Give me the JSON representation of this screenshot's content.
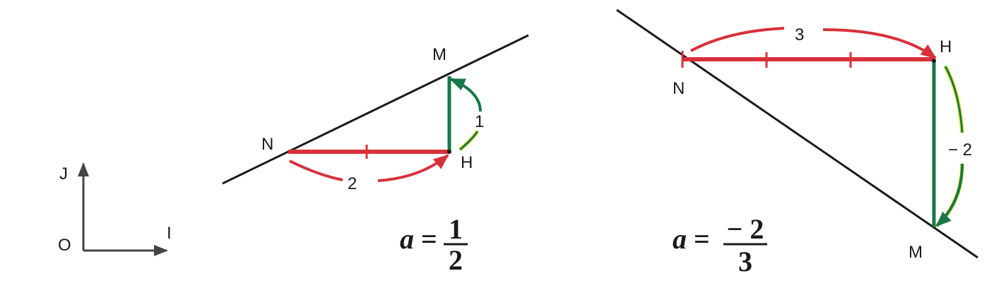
{
  "colors": {
    "line": "#1a1a1a",
    "run": "#d8303a",
    "rise": "#17774a",
    "highlight": "#f2e84a"
  },
  "axes": {
    "origin": "O",
    "x_unit": "I",
    "y_unit": "J"
  },
  "example_positive": {
    "point_n": "N",
    "point_m": "M",
    "point_h": "H",
    "run_value": "2",
    "rise_value": "1",
    "slope_var": "a",
    "slope_eq": "=",
    "slope_num": "1",
    "slope_den": "2"
  },
  "example_negative": {
    "point_n": "N",
    "point_m": "M",
    "point_h": "H",
    "run_value": "3",
    "rise_value": "− 2",
    "slope_var": "a",
    "slope_eq": "=",
    "slope_num": "− 2",
    "slope_den": "3"
  }
}
